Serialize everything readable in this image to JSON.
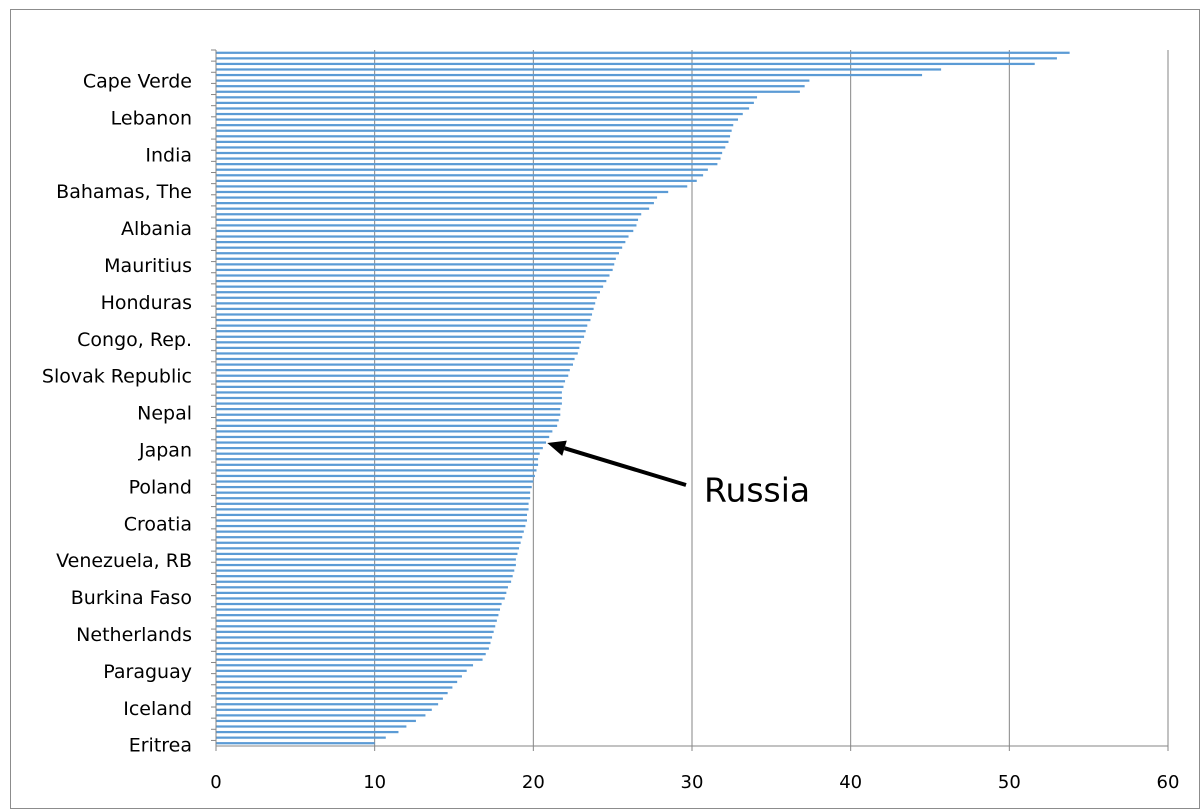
{
  "chart_data": {
    "type": "bar",
    "orientation": "horizontal",
    "title": "",
    "xlabel": "",
    "ylabel": "",
    "xlim": [
      0,
      60
    ],
    "xticks": [
      0,
      10,
      20,
      30,
      40,
      50,
      60
    ],
    "grid": true,
    "legend": "none",
    "bar_color": "#5b9bd5",
    "grid_color": "#868686",
    "labeled_categories": [
      "Cape Verde",
      "Lebanon",
      "India",
      "Bahamas, The",
      "Albania",
      "Mauritius",
      "Honduras",
      "Congo, Rep.",
      "Slovak Republic",
      "Nepal",
      "Japan",
      "Poland",
      "Croatia",
      "Venezuela, RB",
      "Burkina Faso",
      "Netherlands",
      "Paraguay",
      "Iceland",
      "Eritrea"
    ],
    "values": [
      53.8,
      53.0,
      51.6,
      45.7,
      44.5,
      37.4,
      37.1,
      36.8,
      34.1,
      33.9,
      33.6,
      33.2,
      32.9,
      32.6,
      32.5,
      32.4,
      32.3,
      32.1,
      31.9,
      31.8,
      31.6,
      31.0,
      30.7,
      30.3,
      29.7,
      28.5,
      27.8,
      27.6,
      27.3,
      26.8,
      26.6,
      26.5,
      26.3,
      26.0,
      25.8,
      25.6,
      25.4,
      25.2,
      25.1,
      25.0,
      24.8,
      24.6,
      24.4,
      24.2,
      24.0,
      23.9,
      23.8,
      23.7,
      23.6,
      23.4,
      23.3,
      23.2,
      23.0,
      22.9,
      22.8,
      22.6,
      22.5,
      22.3,
      22.2,
      22.0,
      21.9,
      21.8,
      21.8,
      21.8,
      21.7,
      21.7,
      21.6,
      21.5,
      21.2,
      21.0,
      20.8,
      20.6,
      20.4,
      20.3,
      20.3,
      20.2,
      20.1,
      20.0,
      19.9,
      19.8,
      19.8,
      19.7,
      19.7,
      19.6,
      19.6,
      19.5,
      19.4,
      19.3,
      19.2,
      19.1,
      19.0,
      18.9,
      18.9,
      18.8,
      18.7,
      18.6,
      18.4,
      18.3,
      18.2,
      18.0,
      17.9,
      17.8,
      17.7,
      17.6,
      17.5,
      17.4,
      17.3,
      17.2,
      17.0,
      16.8,
      16.2,
      15.8,
      15.5,
      15.2,
      14.9,
      14.6,
      14.3,
      14.0,
      13.6,
      13.2,
      12.6,
      12.0,
      11.5,
      10.7,
      10.0
    ],
    "annotations": [
      {
        "text": "Russia",
        "target_category_label": "Japan",
        "value": 20.5
      }
    ]
  }
}
